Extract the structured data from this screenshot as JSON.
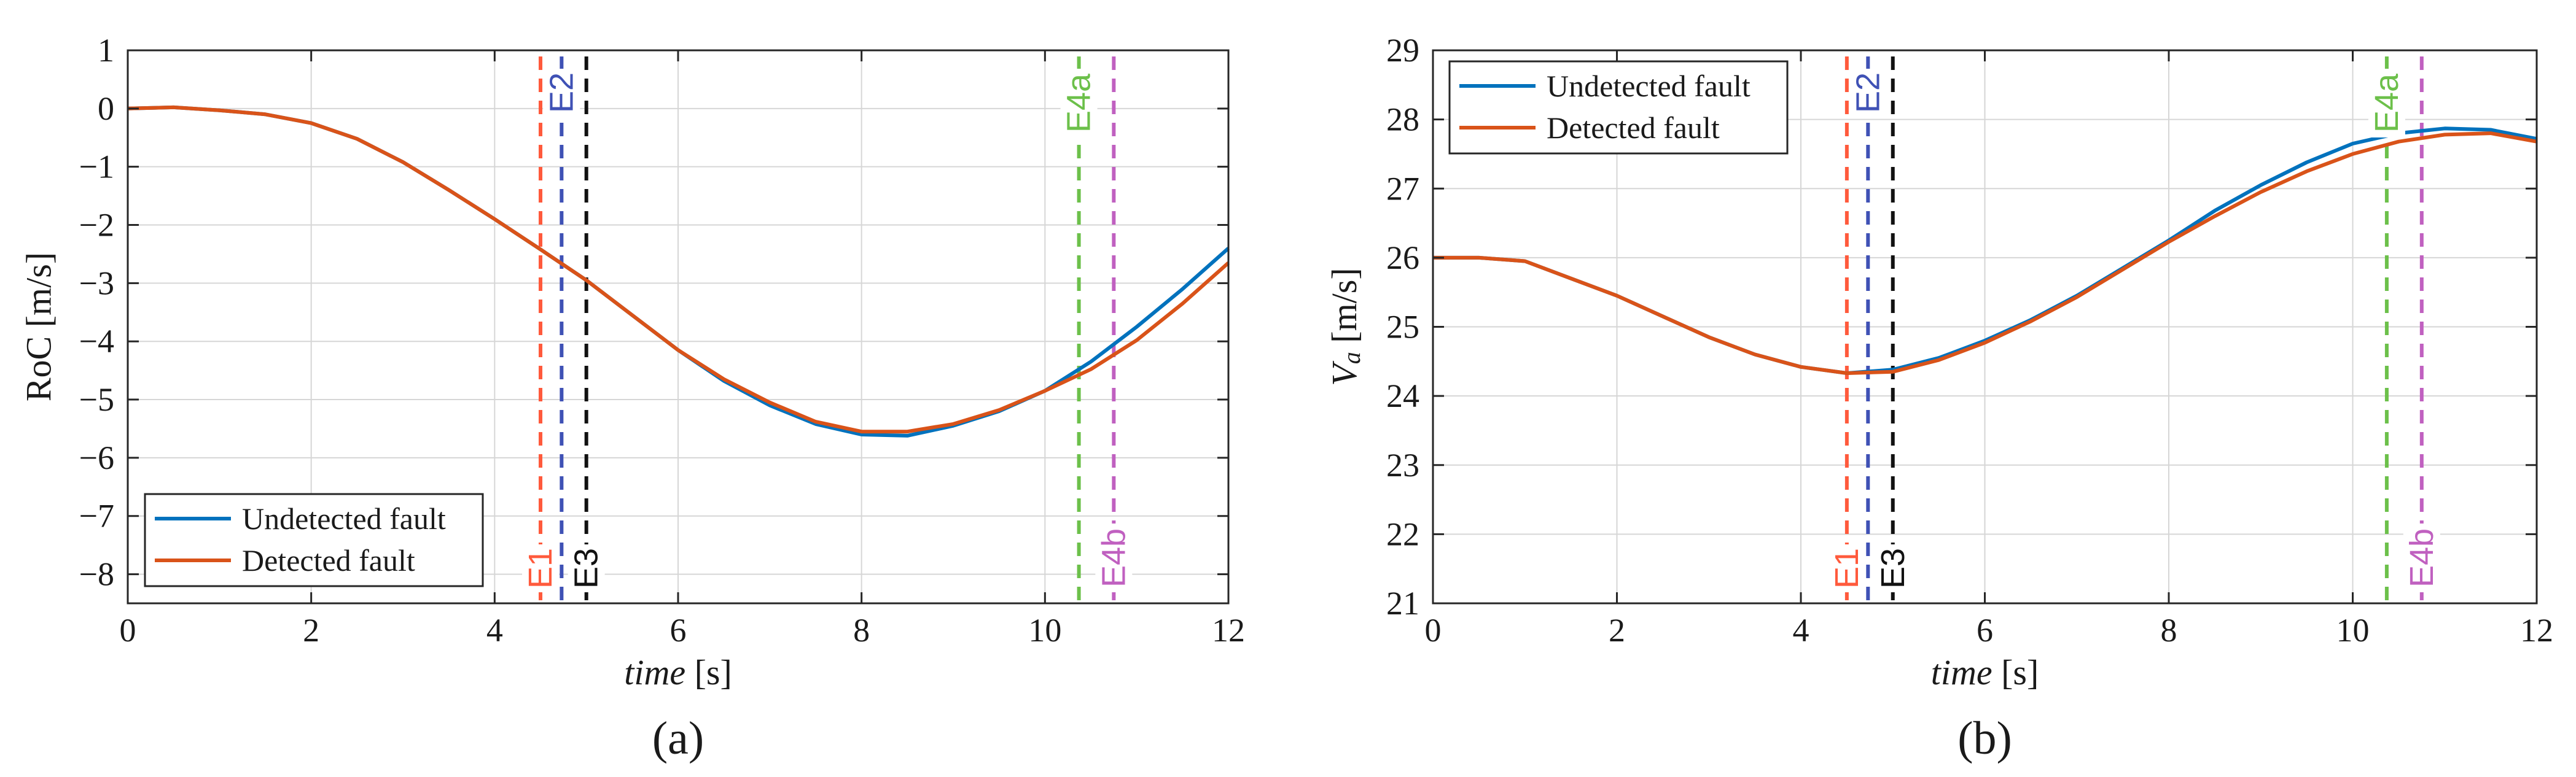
{
  "chart_data": [
    {
      "type": "line",
      "panel_label": "(a)",
      "xlabel_italic": "time",
      "xlabel_unit": "[s]",
      "ylabel": "RoC [m/s]",
      "xlim": [
        0,
        12
      ],
      "ylim": [
        -8.5,
        1
      ],
      "xticks": [
        0,
        2,
        4,
        6,
        8,
        10,
        12
      ],
      "yticks": [
        1,
        0,
        -1,
        -2,
        -3,
        -4,
        -5,
        -6,
        -7,
        -8
      ],
      "grid": true,
      "legend_position": "bottom-left",
      "series": [
        {
          "name": "Undetected fault",
          "color": "#0072BD",
          "x": [
            0,
            0.5,
            1,
            1.5,
            2,
            2.5,
            3,
            3.5,
            4,
            4.5,
            5,
            5.5,
            6,
            6.5,
            7,
            7.5,
            8,
            8.5,
            9,
            9.5,
            10,
            10.5,
            11,
            11.5,
            12
          ],
          "y": [
            0,
            0.02,
            -0.03,
            -0.1,
            -0.25,
            -0.52,
            -0.92,
            -1.4,
            -1.9,
            -2.42,
            -2.95,
            -3.55,
            -4.15,
            -4.68,
            -5.1,
            -5.42,
            -5.6,
            -5.62,
            -5.45,
            -5.2,
            -4.85,
            -4.35,
            -3.75,
            -3.1,
            -2.4
          ]
        },
        {
          "name": "Detected fault",
          "color": "#D95319",
          "x": [
            0,
            0.5,
            1,
            1.5,
            2,
            2.5,
            3,
            3.5,
            4,
            4.5,
            5,
            5.5,
            6,
            6.5,
            7,
            7.5,
            8,
            8.5,
            9,
            9.5,
            10,
            10.5,
            11,
            11.5,
            12
          ],
          "y": [
            0,
            0.02,
            -0.03,
            -0.1,
            -0.25,
            -0.52,
            -0.92,
            -1.4,
            -1.9,
            -2.42,
            -2.95,
            -3.55,
            -4.15,
            -4.65,
            -5.05,
            -5.38,
            -5.55,
            -5.55,
            -5.42,
            -5.18,
            -4.85,
            -4.48,
            -3.98,
            -3.35,
            -2.65
          ]
        }
      ],
      "events": [
        {
          "label": "E1",
          "x": 4.5,
          "color": "#FF5A3C",
          "label_position": "bottom"
        },
        {
          "label": "E2",
          "x": 4.73,
          "color": "#3F51B5",
          "label_position": "top"
        },
        {
          "label": "E3",
          "x": 5.0,
          "color": "#111111",
          "label_position": "bottom"
        },
        {
          "label": "E4a",
          "x": 10.37,
          "color": "#6CC04A",
          "label_position": "top"
        },
        {
          "label": "E4b",
          "x": 10.75,
          "color": "#C060C0",
          "label_position": "bottom"
        }
      ]
    },
    {
      "type": "line",
      "panel_label": "(b)",
      "xlabel_italic": "time",
      "xlabel_unit": "[s]",
      "ylabel_symbol": "V",
      "ylabel_subscript": "a",
      "ylabel_unit": "[m/s]",
      "xlim": [
        0,
        12
      ],
      "ylim": [
        21,
        29
      ],
      "xticks": [
        0,
        2,
        4,
        6,
        8,
        10,
        12
      ],
      "yticks": [
        29,
        28,
        27,
        26,
        25,
        24,
        23,
        22,
        21
      ],
      "grid": true,
      "legend_position": "top-left",
      "series": [
        {
          "name": "Undetected fault",
          "color": "#0072BD",
          "x": [
            0,
            0.5,
            1,
            1.5,
            2,
            2.5,
            3,
            3.5,
            4,
            4.5,
            5,
            5.5,
            6,
            6.5,
            7,
            7.5,
            8,
            8.5,
            9,
            9.5,
            10,
            10.5,
            11,
            11.5,
            12
          ],
          "y": [
            26,
            26,
            25.95,
            25.7,
            25.45,
            25.15,
            24.85,
            24.6,
            24.42,
            24.33,
            24.38,
            24.55,
            24.8,
            25.1,
            25.45,
            25.85,
            26.25,
            26.68,
            27.05,
            27.38,
            27.65,
            27.8,
            27.87,
            27.85,
            27.72
          ]
        },
        {
          "name": "Detected fault",
          "color": "#D95319",
          "x": [
            0,
            0.5,
            1,
            1.5,
            2,
            2.5,
            3,
            3.5,
            4,
            4.5,
            5,
            5.5,
            6,
            6.5,
            7,
            7.5,
            8,
            8.5,
            9,
            9.5,
            10,
            10.5,
            11,
            11.5,
            12
          ],
          "y": [
            26,
            26,
            25.95,
            25.7,
            25.45,
            25.15,
            24.85,
            24.6,
            24.42,
            24.33,
            24.35,
            24.52,
            24.77,
            25.08,
            25.43,
            25.83,
            26.23,
            26.6,
            26.95,
            27.25,
            27.5,
            27.68,
            27.78,
            27.8,
            27.68
          ]
        }
      ],
      "events": [
        {
          "label": "E1",
          "x": 4.5,
          "color": "#FF5A3C",
          "label_position": "bottom"
        },
        {
          "label": "E2",
          "x": 4.73,
          "color": "#3F51B5",
          "label_position": "top"
        },
        {
          "label": "E3",
          "x": 5.0,
          "color": "#111111",
          "label_position": "bottom"
        },
        {
          "label": "E4a",
          "x": 10.37,
          "color": "#6CC04A",
          "label_position": "top"
        },
        {
          "label": "E4b",
          "x": 10.75,
          "color": "#C060C0",
          "label_position": "bottom"
        }
      ]
    }
  ]
}
